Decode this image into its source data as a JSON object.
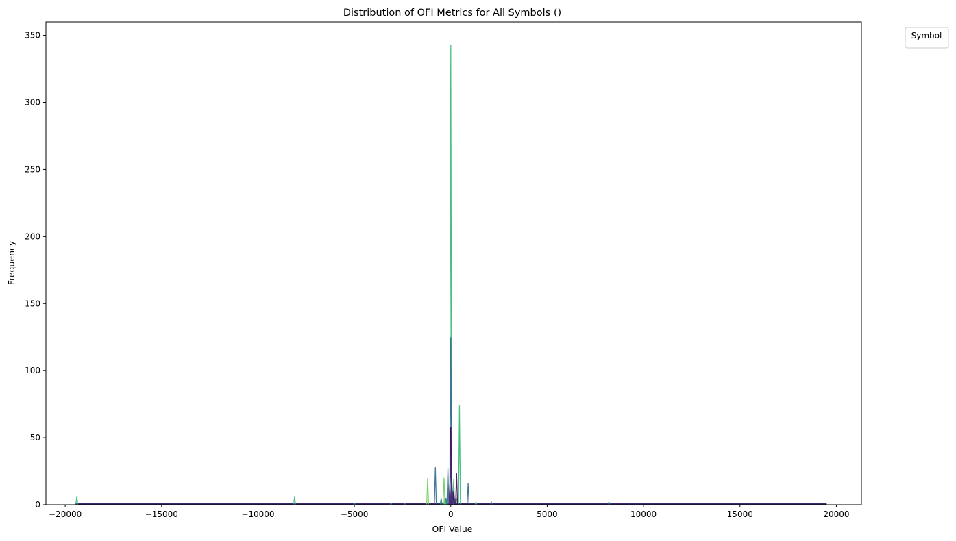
{
  "chart_data": {
    "type": "line",
    "title": "Distribution of OFI Metrics for All Symbols ()",
    "xlabel": "OFI Value",
    "ylabel": "Frequency",
    "xlim": [
      -21000,
      21300
    ],
    "ylim": [
      0,
      360
    ],
    "xticks": [
      -20000,
      -15000,
      -10000,
      -5000,
      0,
      5000,
      10000,
      15000,
      20000
    ],
    "xtick_labels": [
      "−20000",
      "−15000",
      "−10000",
      "−5000",
      "0",
      "5000",
      "10000",
      "15000",
      "20000"
    ],
    "yticks": [
      0,
      50,
      100,
      150,
      200,
      250,
      300,
      350
    ],
    "ytick_labels": [
      "0",
      "50",
      "100",
      "150",
      "200",
      "250",
      "300",
      "350"
    ],
    "grid": false,
    "legend": {
      "title": "Symbol",
      "placement": "upper-right-outside",
      "entries": []
    },
    "baseline": {
      "x_start": -19500,
      "x_end": 19500,
      "value": 0.5
    },
    "series": [
      {
        "color": "#35b779",
        "peaks": [
          {
            "x": -19400,
            "y": 6
          },
          {
            "x": -8100,
            "y": 6
          },
          {
            "x": -5000,
            "y": 1
          },
          {
            "x": -3100,
            "y": 1
          },
          {
            "x": -2400,
            "y": 1
          },
          {
            "x": 0,
            "y": 343
          },
          {
            "x": 150,
            "y": 19
          },
          {
            "x": 300,
            "y": 5
          },
          {
            "x": 450,
            "y": 74
          },
          {
            "x": 1300,
            "y": 2
          }
        ]
      },
      {
        "color": "#6ece58",
        "peaks": [
          {
            "x": -1200,
            "y": 20
          },
          {
            "x": -350,
            "y": 20
          },
          {
            "x": -300,
            "y": 6
          },
          {
            "x": 80,
            "y": 11
          }
        ]
      },
      {
        "color": "#31688e",
        "peaks": [
          {
            "x": -800,
            "y": 28
          },
          {
            "x": -150,
            "y": 27
          },
          {
            "x": 0,
            "y": 125
          },
          {
            "x": 900,
            "y": 16
          },
          {
            "x": 2100,
            "y": 2
          },
          {
            "x": 8200,
            "y": 2
          }
        ]
      },
      {
        "color": "#26828e",
        "peaks": [
          {
            "x": -500,
            "y": 5
          },
          {
            "x": -250,
            "y": 5
          },
          {
            "x": 100,
            "y": 10
          },
          {
            "x": 200,
            "y": 5
          }
        ]
      },
      {
        "color": "#440154",
        "peaks": [
          {
            "x": 0,
            "y": 58
          },
          {
            "x": 300,
            "y": 24
          },
          {
            "x": 150,
            "y": 10
          }
        ]
      },
      {
        "color": "#482878",
        "peaks": [
          {
            "x": 0,
            "y": 38
          },
          {
            "x": 50,
            "y": 20
          },
          {
            "x": -50,
            "y": 15
          }
        ]
      }
    ]
  }
}
